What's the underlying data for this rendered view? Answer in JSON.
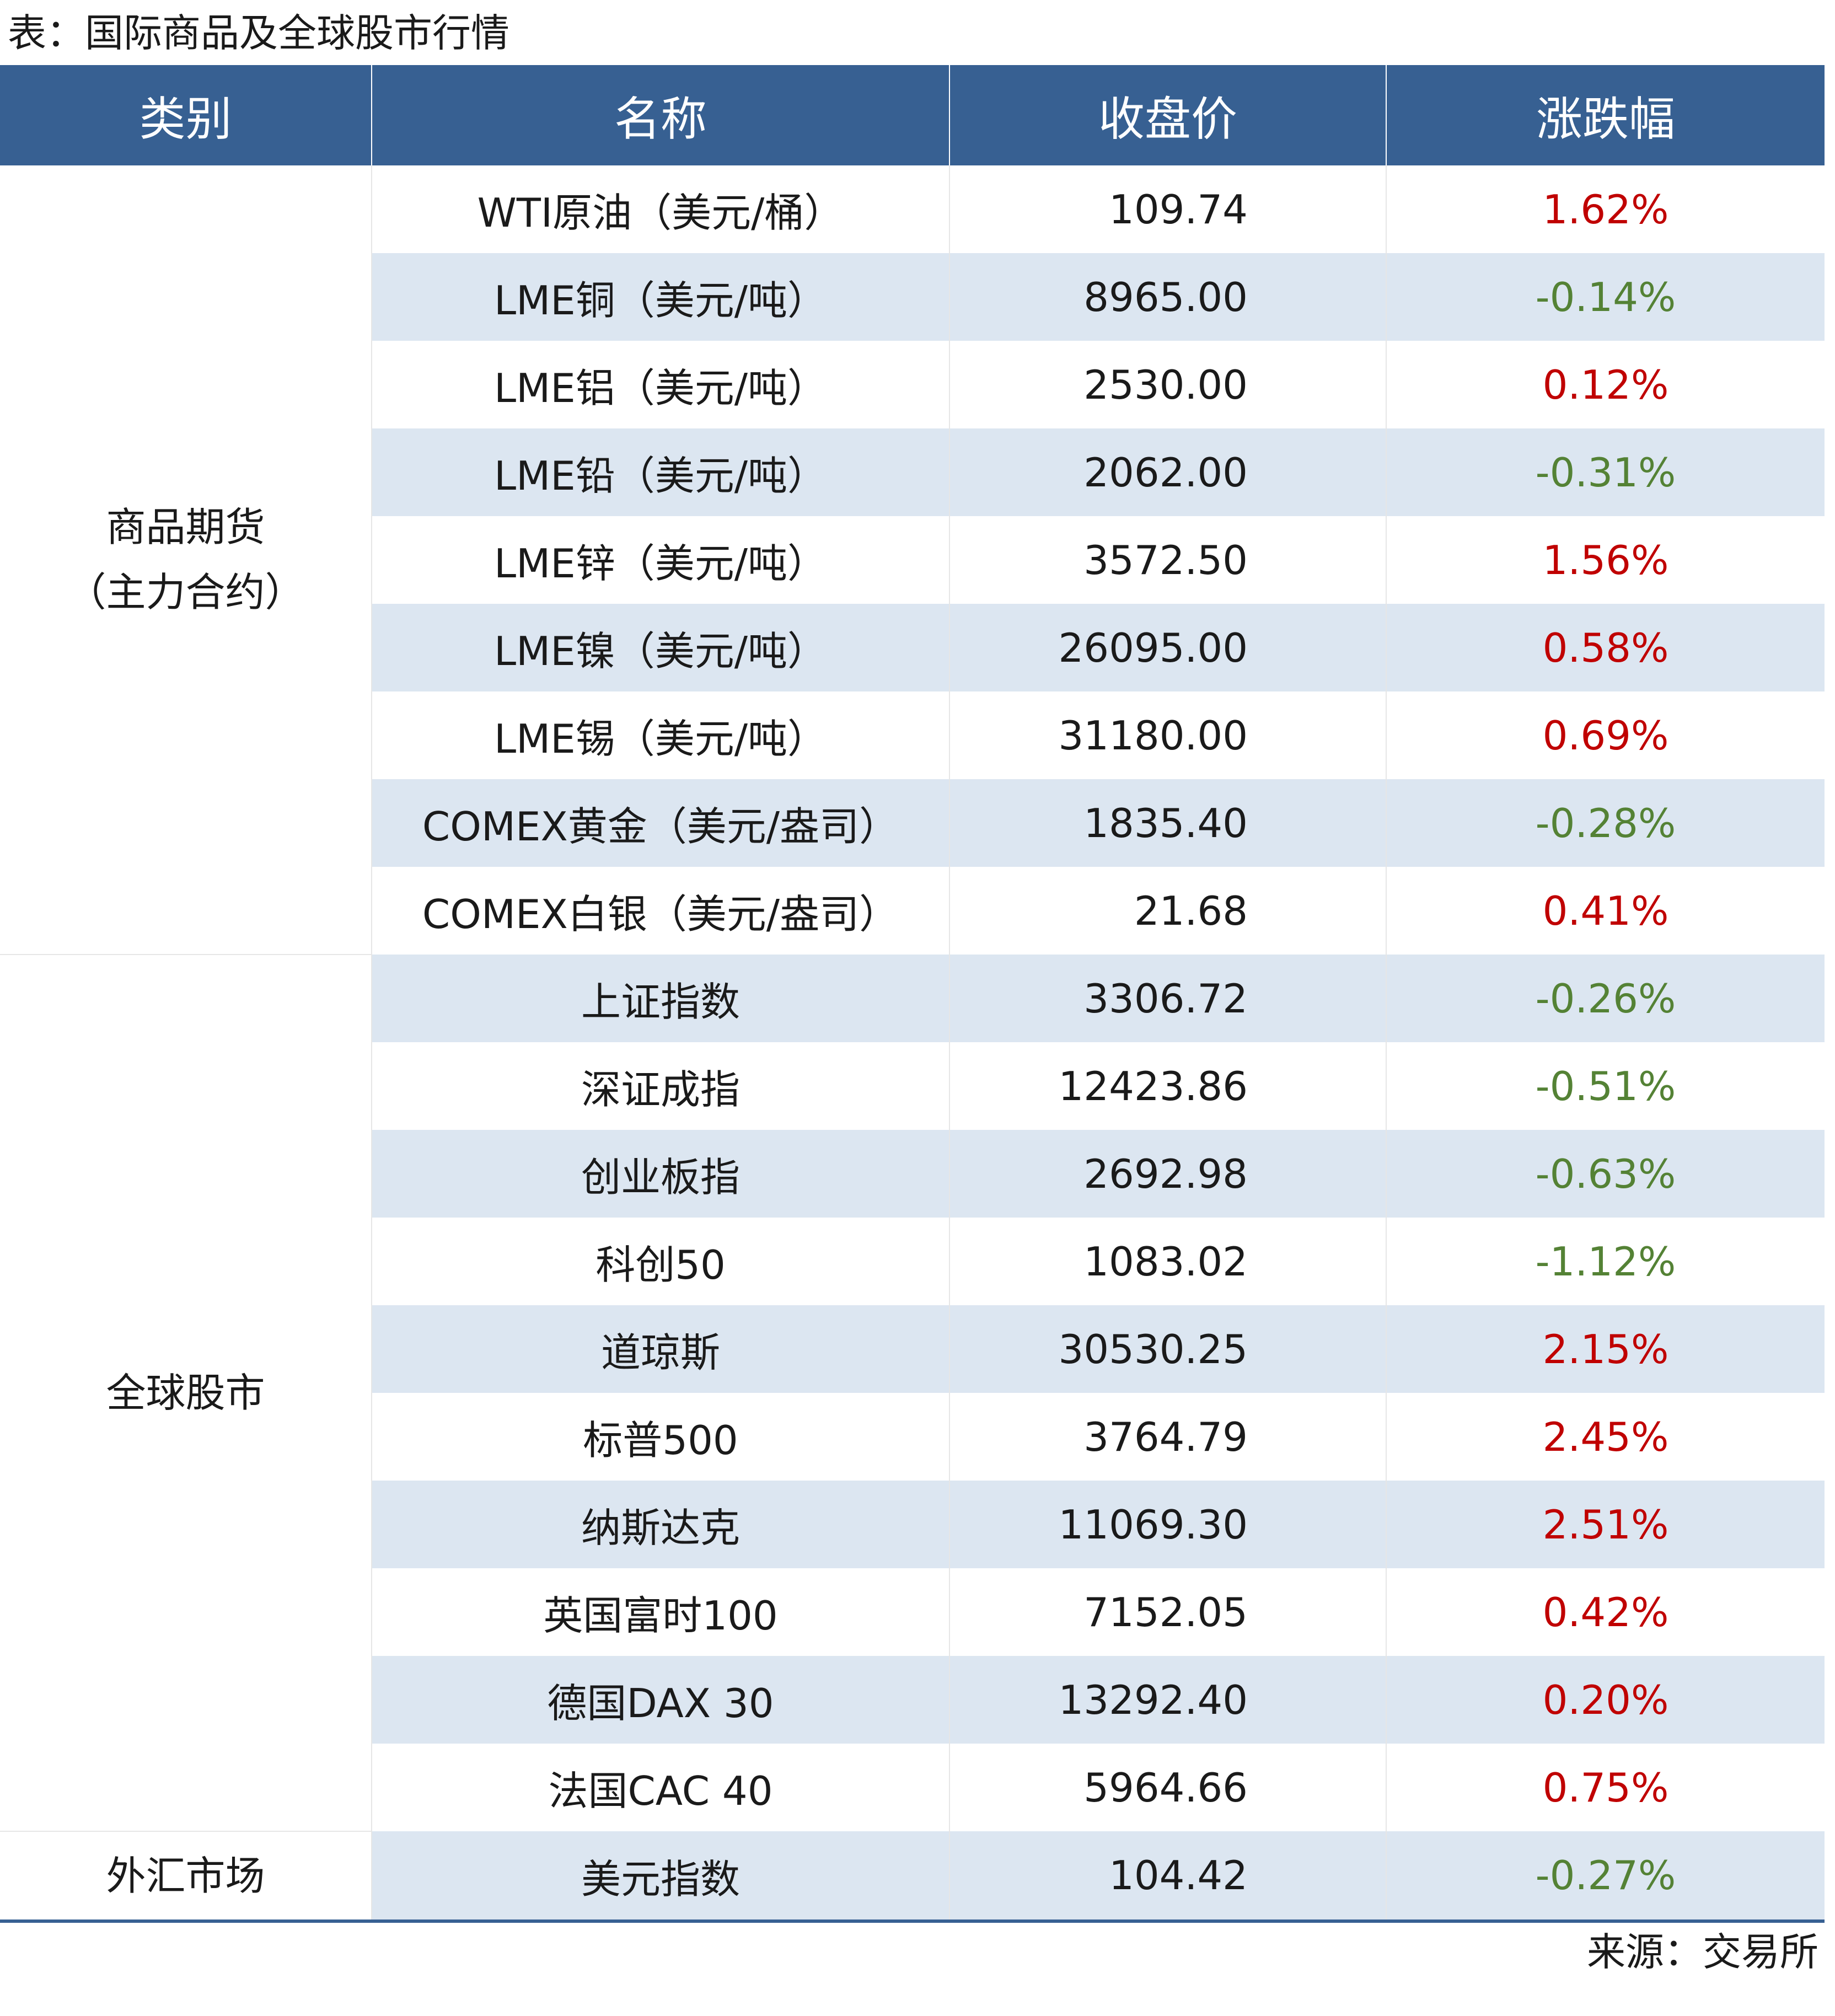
{
  "title": "表：国际商品及全球股市行情",
  "headers": {
    "category": "类别",
    "name": "名称",
    "close": "收盘价",
    "change": "涨跌幅"
  },
  "groups": [
    {
      "category": "商品期货\n（主力合约）",
      "rows": [
        {
          "name": "WTI原油（美元/桶）",
          "close": "109.74",
          "change": "1.62%",
          "direction": "up"
        },
        {
          "name": "LME铜（美元/吨）",
          "close": "8965.00",
          "change": "-0.14%",
          "direction": "down"
        },
        {
          "name": "LME铝（美元/吨）",
          "close": "2530.00",
          "change": "0.12%",
          "direction": "up"
        },
        {
          "name": "LME铅（美元/吨）",
          "close": "2062.00",
          "change": "-0.31%",
          "direction": "down"
        },
        {
          "name": "LME锌（美元/吨）",
          "close": "3572.50",
          "change": "1.56%",
          "direction": "up"
        },
        {
          "name": "LME镍（美元/吨）",
          "close": "26095.00",
          "change": "0.58%",
          "direction": "up"
        },
        {
          "name": "LME锡（美元/吨）",
          "close": "31180.00",
          "change": "0.69%",
          "direction": "up"
        },
        {
          "name": "COMEX黄金（美元/盎司）",
          "close": "1835.40",
          "change": "-0.28%",
          "direction": "down"
        },
        {
          "name": "COMEX白银（美元/盎司）",
          "close": "21.68",
          "change": "0.41%",
          "direction": "up"
        }
      ]
    },
    {
      "category": "全球股市",
      "rows": [
        {
          "name": "上证指数",
          "close": "3306.72",
          "change": "-0.26%",
          "direction": "down"
        },
        {
          "name": "深证成指",
          "close": "12423.86",
          "change": "-0.51%",
          "direction": "down"
        },
        {
          "name": "创业板指",
          "close": "2692.98",
          "change": "-0.63%",
          "direction": "down"
        },
        {
          "name": "科创50",
          "close": "1083.02",
          "change": "-1.12%",
          "direction": "down"
        },
        {
          "name": "道琼斯",
          "close": "30530.25",
          "change": "2.15%",
          "direction": "up"
        },
        {
          "name": "标普500",
          "close": "3764.79",
          "change": "2.45%",
          "direction": "up"
        },
        {
          "name": "纳斯达克",
          "close": "11069.30",
          "change": "2.51%",
          "direction": "up"
        },
        {
          "name": "英国富时100",
          "close": "7152.05",
          "change": "0.42%",
          "direction": "up"
        },
        {
          "name": "德国DAX 30",
          "close": "13292.40",
          "change": "0.20%",
          "direction": "up"
        },
        {
          "name": "法国CAC 40",
          "close": "5964.66",
          "change": "0.75%",
          "direction": "up"
        }
      ]
    },
    {
      "category": "外汇市场",
      "rows": [
        {
          "name": "美元指数",
          "close": "104.42",
          "change": "-0.27%",
          "direction": "down"
        }
      ]
    }
  ],
  "source": "来源：交易所",
  "colors": {
    "header_bg": "#376092",
    "row_shade": "#dce6f1",
    "up": "#c00000",
    "down": "#548235"
  }
}
